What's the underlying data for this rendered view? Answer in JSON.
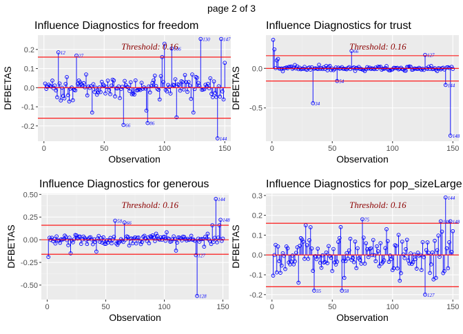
{
  "page_label": "page 2 of 3",
  "colors": {
    "panel_bg": "#EBEBEB",
    "grid_major": "#FFFFFF",
    "grid_minor": "#F4F4F4",
    "stem": "#0000FF",
    "reference_line": "#FF0000",
    "threshold_text": "#8B0000",
    "axis_text": "#4D4D4D"
  },
  "chart_data": [
    {
      "type": "scatter",
      "title": "Influence Diagnostics for freedom",
      "xlabel": "Observation",
      "ylabel": "DFBETAS",
      "threshold_text": "Threshold: 0.16",
      "threshold": 0.16,
      "xlim": [
        -5,
        155
      ],
      "ylim": [
        -0.28,
        0.275
      ],
      "xticks": [
        0,
        50,
        100,
        150
      ],
      "yticks": [
        -0.2,
        -0.1,
        0.0,
        0.1,
        0.2
      ],
      "ytick_labels": [
        "-0.2",
        "-0.1",
        "0.0",
        "0.1",
        "0.2"
      ],
      "seed": 11,
      "amp": 0.045,
      "spikes": [
        [
          12,
          0.185
        ],
        [
          27,
          0.168
        ],
        [
          66,
          -0.195
        ],
        [
          86,
          -0.185
        ],
        [
          106,
          0.205
        ],
        [
          130,
          0.255
        ],
        [
          144,
          -0.265
        ],
        [
          147,
          0.255
        ],
        [
          100,
          0.23
        ],
        [
          150,
          0.13
        ],
        [
          110,
          -0.155
        ],
        [
          85,
          -0.12
        ],
        [
          98,
          0.16
        ],
        [
          124,
          -0.13
        ],
        [
          40,
          -0.13
        ]
      ],
      "labeled": [
        [
          12,
          "12"
        ],
        [
          27,
          "27"
        ],
        [
          66,
          "66"
        ],
        [
          86,
          "86"
        ],
        [
          106,
          "106"
        ],
        [
          130,
          "130"
        ],
        [
          144,
          "144"
        ],
        [
          147,
          "147"
        ]
      ]
    },
    {
      "type": "scatter",
      "title": "Influence Diagnostics for trust",
      "xlabel": "Observation",
      "ylabel": "DFBETAS",
      "threshold_text": "Threshold: 0.16",
      "threshold": 0.16,
      "xlim": [
        -5,
        155
      ],
      "ylim": [
        -0.92,
        0.42
      ],
      "xticks": [
        0,
        50,
        100,
        150
      ],
      "yticks": [
        -0.5,
        0.0
      ],
      "ytick_labels": [
        "-0.5",
        "0.0"
      ],
      "seed": 23,
      "amp": 0.025,
      "spikes": [
        [
          1,
          0.36
        ],
        [
          2,
          0.24
        ],
        [
          34,
          -0.44
        ],
        [
          54,
          -0.16
        ],
        [
          66,
          0.22
        ],
        [
          127,
          0.17
        ],
        [
          144,
          -0.21
        ],
        [
          148,
          -0.85
        ],
        [
          4,
          0.1
        ],
        [
          5,
          0.12
        ]
      ],
      "labeled": [
        [
          34,
          "34"
        ],
        [
          54,
          "54"
        ],
        [
          66,
          "66"
        ],
        [
          127,
          "127"
        ],
        [
          144,
          "144"
        ],
        [
          148,
          "148"
        ]
      ]
    },
    {
      "type": "scatter",
      "title": "Influence Diagnostics for generous",
      "xlabel": "Observation",
      "ylabel": "DFBETAS",
      "threshold_text": "Threshold: 0.16",
      "threshold": 0.16,
      "xlim": [
        -5,
        155
      ],
      "ylim": [
        -0.66,
        0.51
      ],
      "xticks": [
        0,
        50,
        100,
        150
      ],
      "yticks": [
        -0.5,
        -0.25,
        0.0,
        0.25,
        0.5
      ],
      "ytick_labels": [
        "-0.50",
        "-0.25",
        "0.00",
        "0.25",
        "0.50"
      ],
      "seed": 37,
      "amp": 0.05,
      "spikes": [
        [
          1,
          -0.19
        ],
        [
          58,
          0.21
        ],
        [
          66,
          0.19
        ],
        [
          127,
          -0.17
        ],
        [
          128,
          -0.62
        ],
        [
          144,
          0.45
        ],
        [
          148,
          0.22
        ],
        [
          147,
          0.16
        ],
        [
          141,
          0.16
        ],
        [
          42,
          -0.13
        ],
        [
          20,
          -0.15
        ],
        [
          110,
          -0.12
        ]
      ],
      "labeled": [
        [
          58,
          "58"
        ],
        [
          66,
          "66"
        ],
        [
          127,
          "127"
        ],
        [
          128,
          "128"
        ],
        [
          144,
          "144"
        ],
        [
          148,
          "148"
        ]
      ]
    },
    {
      "type": "scatter",
      "title": "Influence Diagnostics for pop_sizeLarge",
      "xlabel": "Observation",
      "ylabel": "DFBETAS",
      "threshold_text": "Threshold: 0.16",
      "threshold": 0.16,
      "xlim": [
        -5,
        155
      ],
      "ylim": [
        -0.225,
        0.31
      ],
      "xticks": [
        0,
        50,
        100,
        150
      ],
      "yticks": [
        -0.2,
        -0.1,
        0.0,
        0.1,
        0.2,
        0.3
      ],
      "ytick_labels": [
        "-0.2",
        "-0.1",
        "0.0",
        "0.1",
        "0.2",
        "0.3"
      ],
      "seed": 53,
      "amp": 0.085,
      "spikes": [
        [
          35,
          -0.18
        ],
        [
          58,
          -0.18
        ],
        [
          75,
          0.18
        ],
        [
          127,
          -0.2
        ],
        [
          140,
          0.17
        ],
        [
          144,
          0.29
        ],
        [
          148,
          0.17
        ],
        [
          28,
          0.15
        ],
        [
          32,
          0.14
        ],
        [
          150,
          0.12
        ],
        [
          22,
          -0.14
        ],
        [
          95,
          0.13
        ],
        [
          106,
          -0.13
        ]
      ],
      "labeled": [
        [
          35,
          "35"
        ],
        [
          58,
          "58"
        ],
        [
          75,
          "75"
        ],
        [
          127,
          "127"
        ],
        [
          140,
          "140"
        ],
        [
          144,
          "144"
        ],
        [
          148,
          "148"
        ]
      ]
    }
  ]
}
